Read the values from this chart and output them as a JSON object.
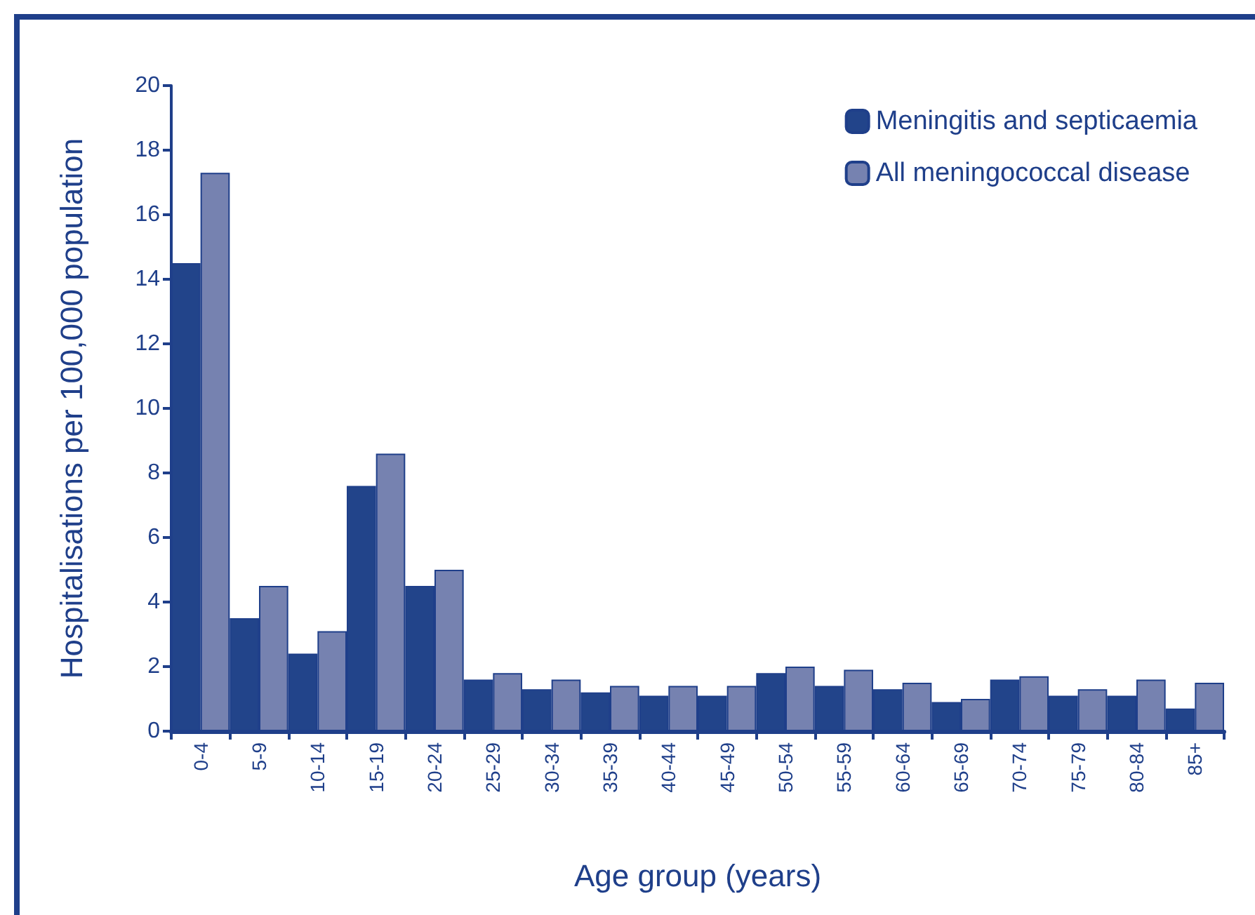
{
  "chart_data": {
    "type": "bar",
    "xlabel": "Age group (years)",
    "ylabel": "Hospitalisations per 100,000 population",
    "categories": [
      "0-4",
      "5-9",
      "10-14",
      "15-19",
      "20-24",
      "25-29",
      "30-34",
      "35-39",
      "40-44",
      "45-49",
      "50-54",
      "55-59",
      "60-64",
      "65-69",
      "70-74",
      "75-79",
      "80-84",
      "85+"
    ],
    "series": [
      {
        "name": "Meningitis and septicaemia",
        "color": "#22448a",
        "values": [
          14.5,
          3.5,
          2.4,
          7.6,
          4.5,
          1.6,
          1.3,
          1.2,
          1.1,
          1.1,
          1.8,
          1.4,
          1.3,
          0.9,
          1.6,
          1.1,
          1.1,
          0.7
        ]
      },
      {
        "name": "All meningococcal disease",
        "color": "#7682b0",
        "values": [
          17.3,
          4.5,
          3.1,
          8.6,
          5.0,
          1.8,
          1.6,
          1.4,
          1.4,
          1.4,
          2.0,
          1.9,
          1.5,
          1.0,
          1.7,
          1.3,
          1.6,
          1.5
        ]
      }
    ],
    "ylim": [
      0,
      20
    ],
    "yticks": [
      0,
      2,
      4,
      6,
      8,
      10,
      12,
      14,
      16,
      18,
      20
    ],
    "grid": false,
    "legend": "top right"
  }
}
